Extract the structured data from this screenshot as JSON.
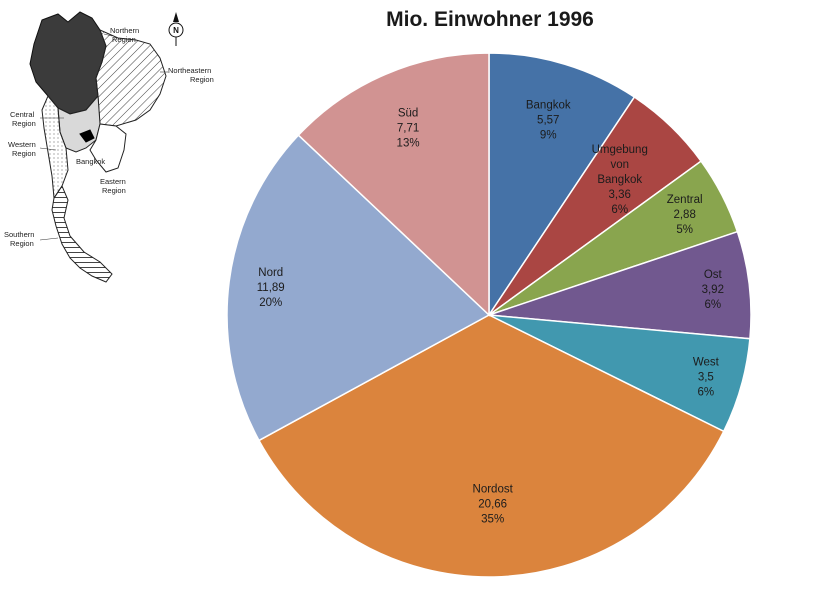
{
  "chart_data": {
    "type": "pie",
    "title": "Mio. Einwohner 1996",
    "slices": [
      {
        "label": "Bangkok",
        "value": 5.57,
        "value_text": "5,57",
        "percent": "9%",
        "color": "#4572a7"
      },
      {
        "label": "Umgebung von Bangkok",
        "value": 3.36,
        "value_text": "3,36",
        "percent": "6%",
        "color": "#aa4643"
      },
      {
        "label": "Zentral",
        "value": 2.88,
        "value_text": "2,88",
        "percent": "5%",
        "color": "#89a54e"
      },
      {
        "label": "Ost",
        "value": 3.92,
        "value_text": "3,92",
        "percent": "6%",
        "color": "#71588f"
      },
      {
        "label": "West",
        "value": 3.5,
        "value_text": "3,5",
        "percent": "6%",
        "color": "#4198af"
      },
      {
        "label": "Nordost",
        "value": 20.66,
        "value_text": "20,66",
        "percent": "35%",
        "color": "#db843d"
      },
      {
        "label": "Nord",
        "value": 11.89,
        "value_text": "11,89",
        "percent": "20%",
        "color": "#93a9cf"
      },
      {
        "label": "Süd",
        "value": 7.71,
        "value_text": "7,71",
        "percent": "13%",
        "color": "#d19392"
      }
    ]
  },
  "map": {
    "labels": {
      "northern": [
        "Northern",
        "Region"
      ],
      "northeastern": [
        "Northeastern",
        "Region"
      ],
      "central": [
        "Central",
        "Region"
      ],
      "western": [
        "Western",
        "Region"
      ],
      "bangkok": [
        "Bangkok"
      ],
      "eastern": [
        "Eastern",
        "Region"
      ],
      "southern": [
        "Southern",
        "Region"
      ]
    },
    "compass": "N"
  }
}
